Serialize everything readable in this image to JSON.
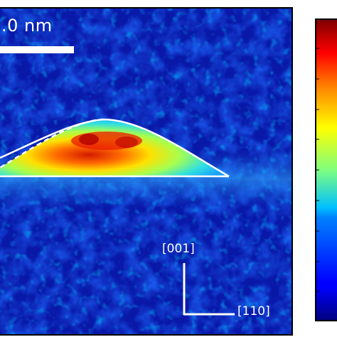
{
  "scale_bar": {
    "label": ".0 nm"
  },
  "axes": {
    "vertical": "[001]",
    "horizontal": "[110]"
  },
  "colormap": {
    "name": "jet"
  },
  "colors": {
    "background": "#0a1aa0",
    "outline": "#ffffff",
    "frame": "#000000"
  }
}
